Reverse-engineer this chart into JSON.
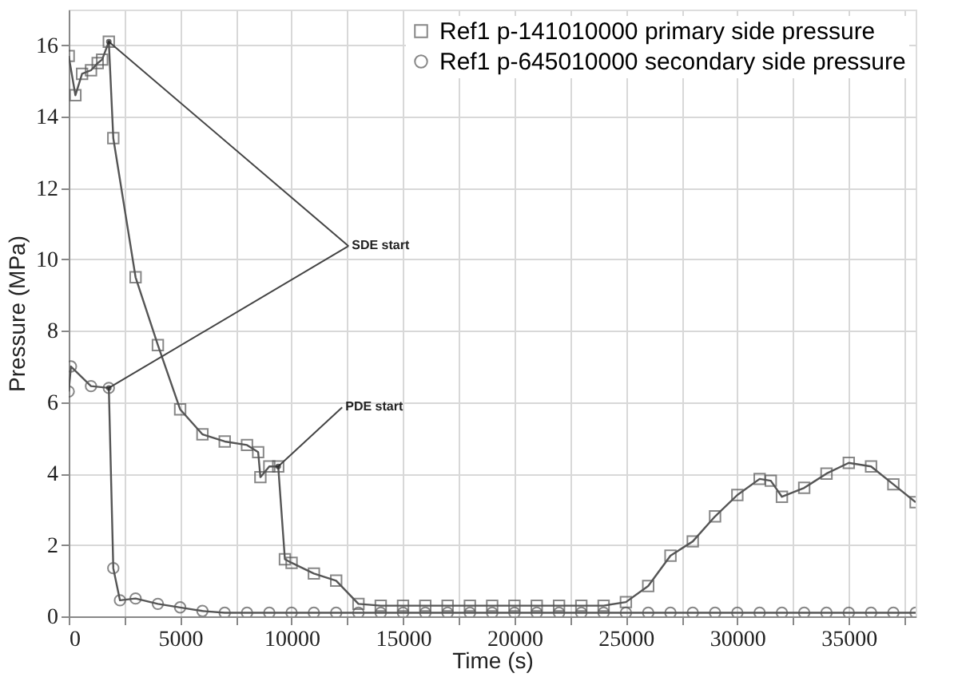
{
  "chart_data": {
    "type": "line",
    "xlabel": "Time (s)",
    "ylabel": "Pressure (MPa)",
    "xlim": [
      0,
      38000
    ],
    "ylim": [
      0,
      17
    ],
    "xticks": [
      0,
      {
        "value": 2500,
        "label": null
      },
      5000,
      {
        "value": 7500,
        "label": null
      },
      10000,
      {
        "value": 12500,
        "label": null
      },
      15000,
      {
        "value": 17500,
        "label": null
      },
      20000,
      {
        "value": 22500,
        "label": null
      },
      25000,
      {
        "value": 27500,
        "label": null
      },
      30000,
      {
        "value": 32500,
        "label": null
      },
      35000,
      {
        "value": 37500,
        "label": null
      }
    ],
    "yticks": [
      0,
      2,
      4,
      6,
      8,
      10,
      12,
      14,
      16
    ],
    "grid": true,
    "legend": "top right",
    "marker": "square",
    "line_style": "solid",
    "series": [
      {
        "name": "Ref1 p-141010000 primary side pressure",
        "color": "#555555",
        "marker": "square",
        "x": [
          0,
          300,
          600,
          1000,
          1300,
          1500,
          1800,
          2000,
          3000,
          4000,
          5000,
          6000,
          7000,
          8000,
          8500,
          8600,
          9000,
          9400,
          9700,
          10000,
          11000,
          12000,
          13000,
          14000,
          15000,
          16000,
          17000,
          18000,
          19000,
          20000,
          21000,
          22000,
          23000,
          24000,
          25000,
          26000,
          27000,
          28000,
          29000,
          30000,
          31000,
          31500,
          32000,
          33000,
          34000,
          35000,
          36000,
          37000,
          38000
        ],
        "values": [
          15.7,
          14.6,
          15.2,
          15.3,
          15.5,
          15.6,
          16.1,
          13.4,
          9.5,
          7.6,
          5.8,
          5.1,
          4.9,
          4.8,
          4.6,
          3.9,
          4.2,
          4.2,
          1.6,
          1.5,
          1.2,
          1.0,
          0.35,
          0.3,
          0.3,
          0.3,
          0.3,
          0.3,
          0.3,
          0.3,
          0.3,
          0.3,
          0.3,
          0.3,
          0.4,
          0.85,
          1.7,
          2.1,
          2.8,
          3.4,
          3.85,
          3.8,
          3.35,
          3.6,
          4.0,
          4.3,
          4.2,
          3.7,
          3.2
        ]
      },
      {
        "name": "Ref1 p-645010000 secondary side pressure",
        "color": "#555555",
        "marker": "circle",
        "x": [
          0,
          100,
          1000,
          1800,
          2000,
          2300,
          3000,
          4000,
          5000,
          6000,
          7000,
          8000,
          9000,
          10000,
          11000,
          12000,
          13000,
          14000,
          15000,
          16000,
          17000,
          18000,
          19000,
          20000,
          21000,
          22000,
          23000,
          24000,
          25000,
          26000,
          27000,
          28000,
          29000,
          30000,
          31000,
          32000,
          33000,
          34000,
          35000,
          36000,
          37000,
          38000
        ],
        "values": [
          6.3,
          7.0,
          6.45,
          6.4,
          1.35,
          0.45,
          0.5,
          0.35,
          0.25,
          0.15,
          0.1,
          0.1,
          0.1,
          0.1,
          0.1,
          0.1,
          0.1,
          0.1,
          0.1,
          0.1,
          0.1,
          0.1,
          0.1,
          0.1,
          0.1,
          0.1,
          0.1,
          0.1,
          0.1,
          0.1,
          0.1,
          0.1,
          0.1,
          0.1,
          0.1,
          0.1,
          0.1,
          0.1,
          0.1,
          0.1,
          0.1,
          0.1
        ]
      }
    ],
    "annotations": [
      {
        "text": "SDE start",
        "x": 1800,
        "y": 16.1
      },
      {
        "text": "PDE start",
        "x": 9400,
        "y": 4.2
      }
    ]
  }
}
